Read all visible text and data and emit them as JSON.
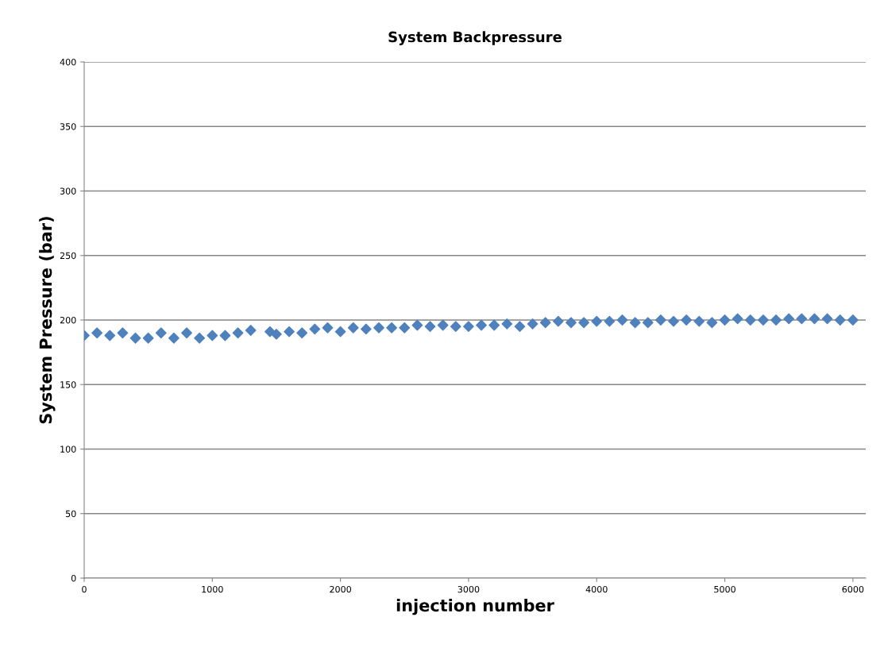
{
  "chart_data": {
    "type": "scatter",
    "title": "System Backpressure",
    "xlabel": "injection number",
    "ylabel": "System Pressure (bar)",
    "x": [
      0,
      100,
      200,
      300,
      400,
      500,
      600,
      700,
      800,
      900,
      1000,
      1100,
      1200,
      1300,
      1450,
      1500,
      1600,
      1700,
      1800,
      1900,
      2000,
      2100,
      2200,
      2300,
      2400,
      2500,
      2600,
      2700,
      2800,
      2900,
      3000,
      3100,
      3200,
      3300,
      3400,
      3500,
      3600,
      3700,
      3800,
      3900,
      4000,
      4100,
      4200,
      4300,
      4400,
      4500,
      4600,
      4700,
      4800,
      4900,
      5000,
      5100,
      5200,
      5300,
      5400,
      5500,
      5600,
      5700,
      5800,
      5900,
      6000
    ],
    "series": [
      {
        "color": "#4f81bd",
        "values": [
          188,
          190,
          188,
          190,
          186,
          186,
          190,
          186,
          190,
          186,
          188,
          188,
          190,
          192,
          191,
          189,
          191,
          190,
          193,
          194,
          191,
          194,
          193,
          194,
          194,
          194,
          196,
          195,
          196,
          195,
          195,
          196,
          196,
          197,
          195,
          197,
          198,
          199,
          198,
          198,
          199,
          199,
          200,
          198,
          198,
          200,
          199,
          200,
          199,
          198,
          200,
          201,
          200,
          200,
          200,
          201,
          201,
          201,
          201,
          200,
          200
        ]
      }
    ],
    "xlim": [
      0,
      6100
    ],
    "xticks": [
      0,
      1000,
      2000,
      3000,
      4000,
      5000,
      6000
    ],
    "ylim": [
      0,
      400
    ],
    "yticks": [
      0,
      50,
      100,
      150,
      200,
      250,
      300,
      350,
      400
    ],
    "grid": "y",
    "marker": "diamond"
  }
}
